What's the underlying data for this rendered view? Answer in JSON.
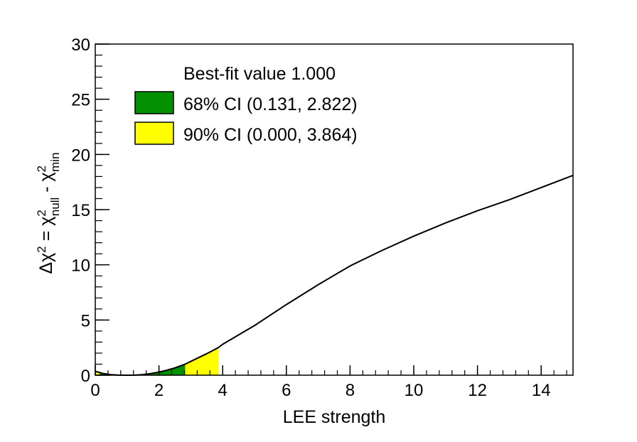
{
  "chart_data": {
    "type": "line",
    "xlabel": "LEE strength",
    "ylabel": "Δχ² = χ²null - χ²min",
    "ylabel_parts": {
      "prefix": "Δχ",
      "sup": "2",
      "eq": " = χ",
      "sup2": "2",
      "sub1": "null",
      "mid": " - χ",
      "sup3": "2",
      "sub2": "min"
    },
    "xlim": [
      0,
      15
    ],
    "ylim": [
      0,
      30
    ],
    "x_ticks": [
      0,
      2,
      4,
      6,
      8,
      10,
      12,
      14
    ],
    "y_ticks": [
      0,
      5,
      10,
      15,
      20,
      25,
      30
    ],
    "x_tick_labels": [
      "0",
      "2",
      "4",
      "6",
      "8",
      "10",
      "12",
      "14"
    ],
    "y_tick_labels": [
      "0",
      "5",
      "10",
      "15",
      "20",
      "25",
      "30"
    ],
    "grid": false,
    "legend_position": "top-left",
    "legend": {
      "title": "Best-fit value 1.000",
      "entries": [
        {
          "label": "68% CI (0.131, 2.822)",
          "color": "#009000"
        },
        {
          "label": "90% CI (0.000, 3.864)",
          "color": "#ffff00"
        }
      ]
    },
    "series": [
      {
        "line_color": "#000000",
        "x": [
          0,
          0.131,
          0.25,
          0.5,
          0.75,
          1.0,
          1.25,
          1.5,
          1.75,
          2.0,
          2.25,
          2.5,
          2.822,
          3.0,
          3.5,
          3.864,
          4.0,
          5.0,
          6.0,
          7.0,
          8.0,
          9.0,
          10.0,
          11.0,
          12.0,
          13.0,
          14.0,
          15.0
        ],
        "y": [
          0.35,
          0.25,
          0.15,
          0.05,
          0.01,
          0.0,
          0.01,
          0.06,
          0.15,
          0.28,
          0.45,
          0.66,
          1.0,
          1.25,
          1.95,
          2.5,
          2.8,
          4.5,
          6.4,
          8.2,
          9.9,
          11.3,
          12.6,
          13.8,
          14.9,
          15.9,
          17.0,
          18.1
        ]
      }
    ],
    "bands": [
      {
        "name": "90% CI",
        "from": 0.0,
        "to": 3.864,
        "color": "#ffff00"
      },
      {
        "name": "68% CI",
        "from": 0.131,
        "to": 2.822,
        "color": "#009000"
      }
    ]
  }
}
